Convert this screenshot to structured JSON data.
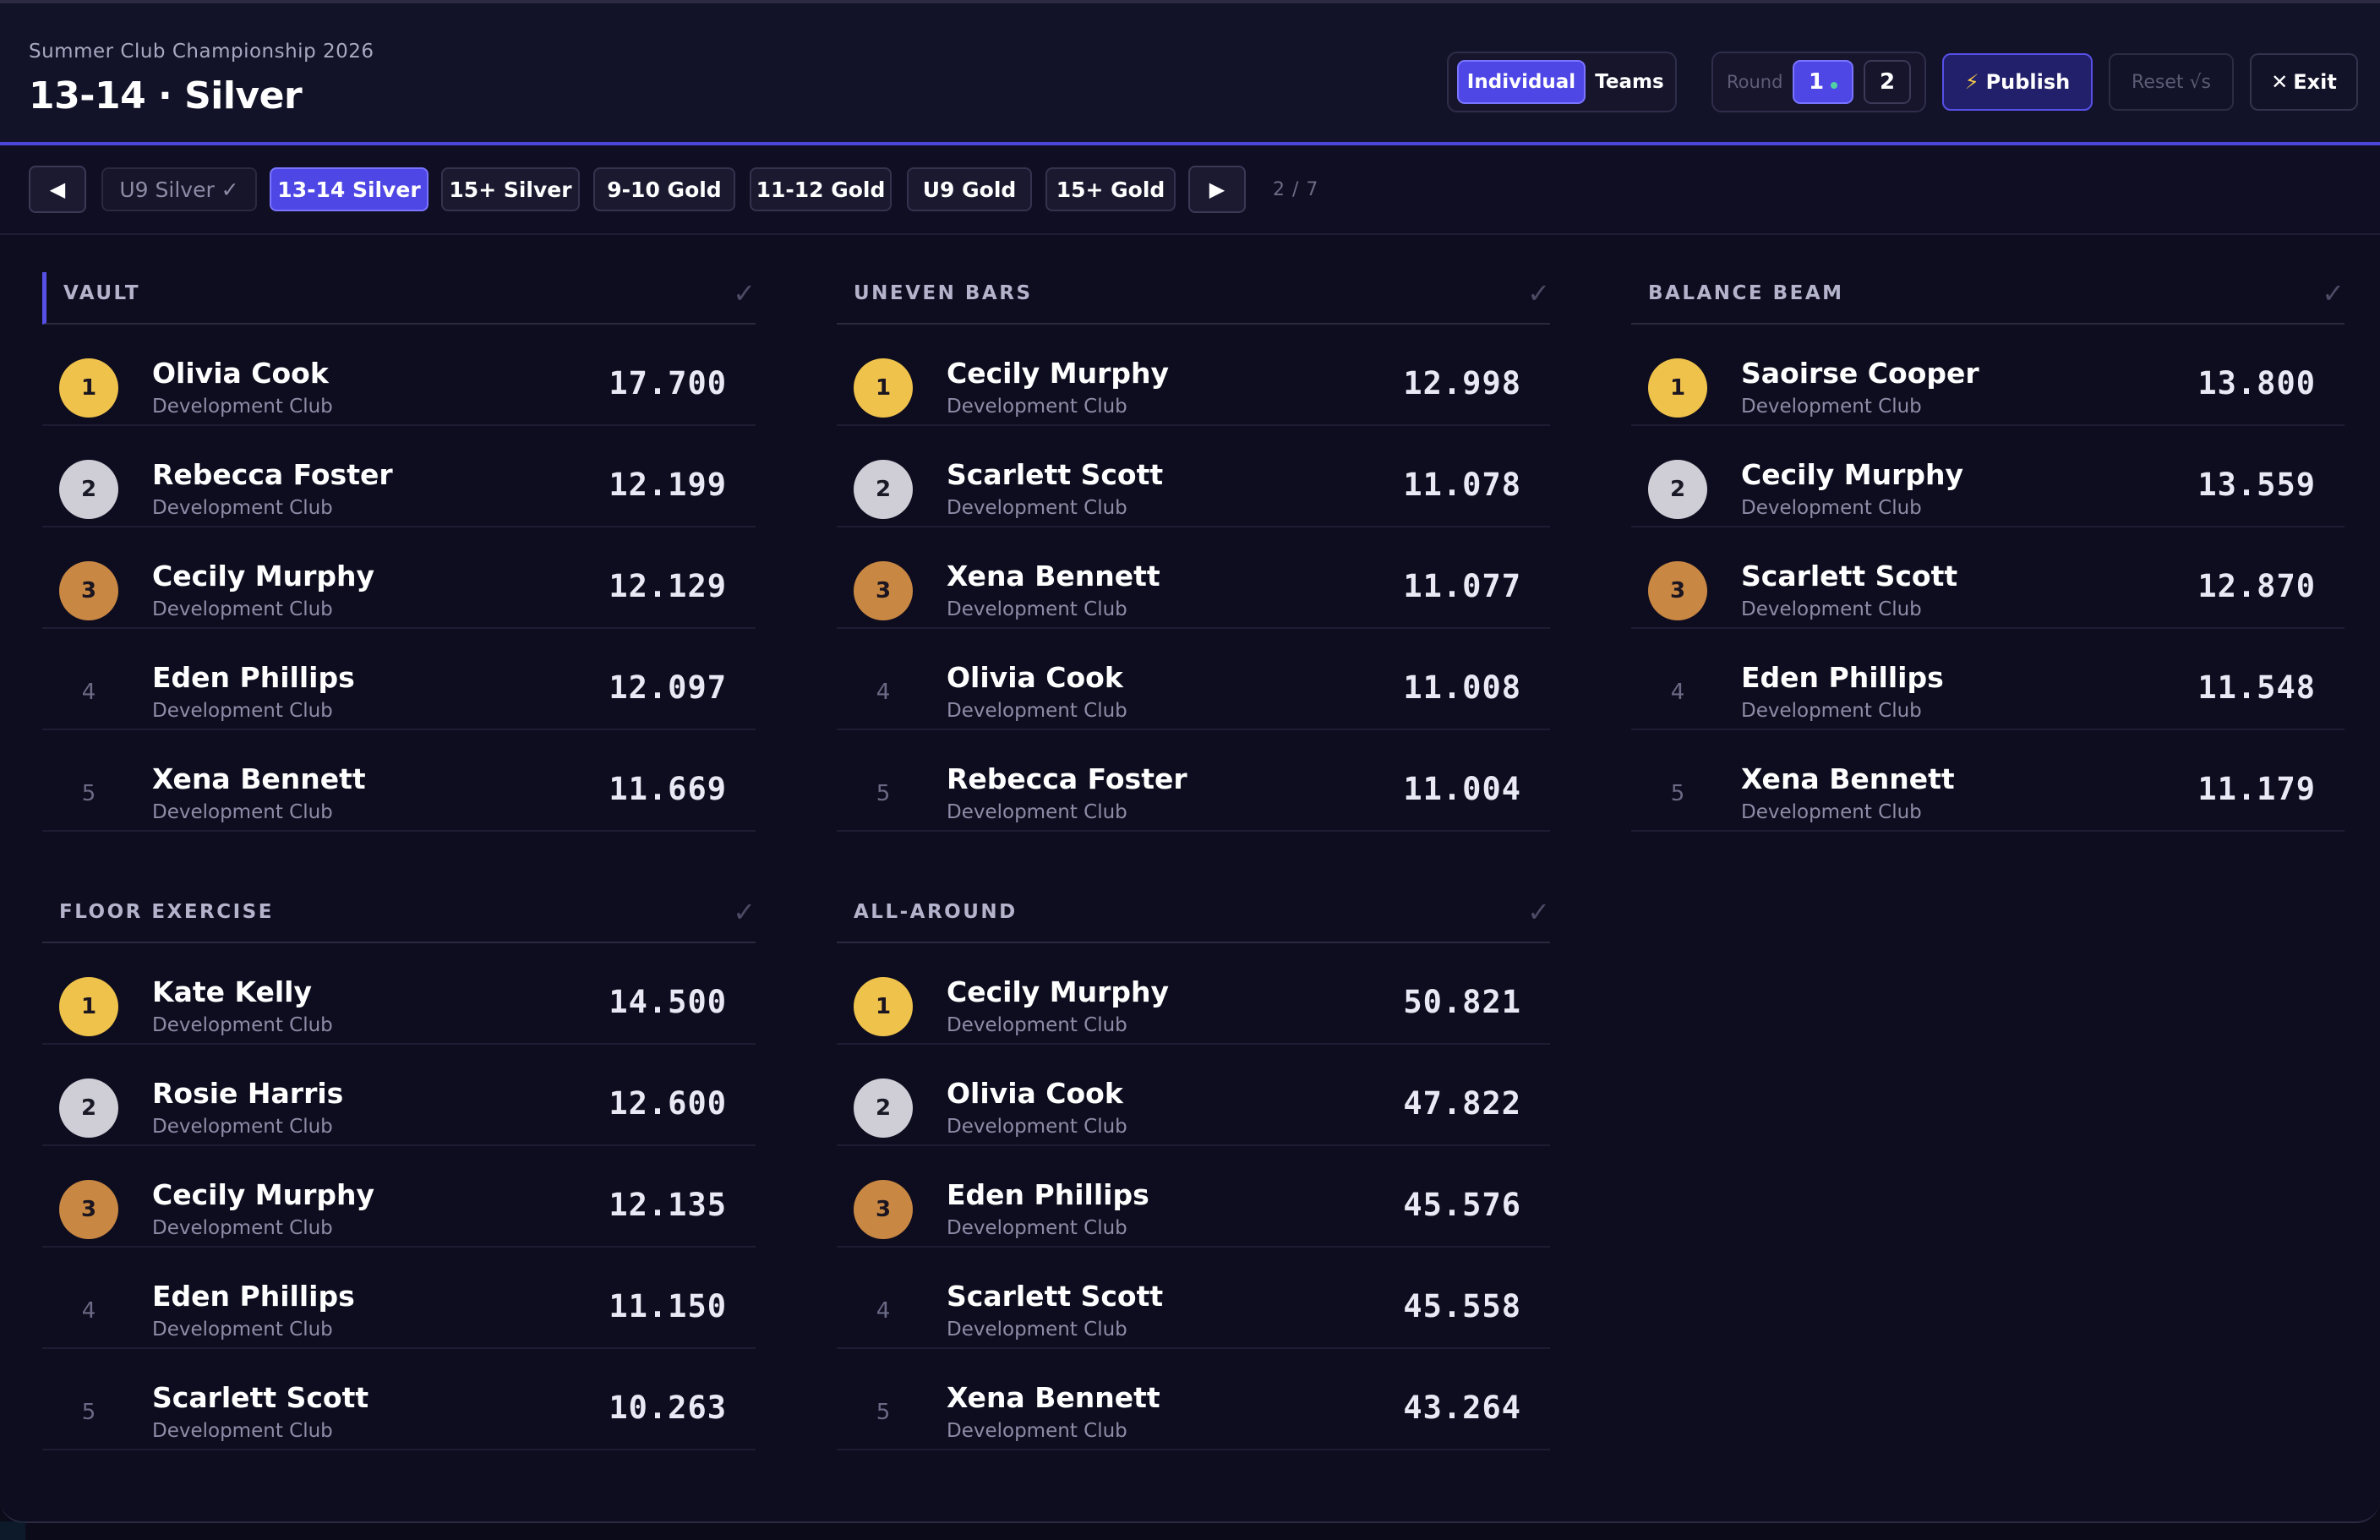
{
  "header": {
    "subtitle": "Summer Club Championship 2026",
    "title": "13-14 · Silver",
    "mode": {
      "individual": "Individual",
      "teams": "Teams",
      "active": "Individual"
    },
    "round": {
      "label": "Round",
      "r1": "1",
      "r2": "2",
      "active": "1"
    },
    "publish_label": "Publish",
    "reset_label": "Reset √s",
    "exit_label": "Exit"
  },
  "tabs": {
    "items": [
      {
        "label": "U9 Silver ✓",
        "state": "done"
      },
      {
        "label": "13-14 Silver",
        "state": "active"
      },
      {
        "label": "15+ Silver",
        "state": "normal"
      },
      {
        "label": "9-10 Gold",
        "state": "normal"
      },
      {
        "label": "11-12 Gold",
        "state": "normal"
      },
      {
        "label": "U9 Gold",
        "state": "normal"
      },
      {
        "label": "15+ Gold",
        "state": "normal"
      }
    ],
    "pager": "2 / 7"
  },
  "panels": [
    {
      "title": "VAULT",
      "rows": [
        {
          "rank": "1",
          "name": "Olivia Cook",
          "club": "Development Club",
          "score": "17.700"
        },
        {
          "rank": "2",
          "name": "Rebecca Foster",
          "club": "Development Club",
          "score": "12.199"
        },
        {
          "rank": "3",
          "name": "Cecily Murphy",
          "club": "Development Club",
          "score": "12.129"
        },
        {
          "rank": "4",
          "name": "Eden Phillips",
          "club": "Development Club",
          "score": "12.097"
        },
        {
          "rank": "5",
          "name": "Xena Bennett",
          "club": "Development Club",
          "score": "11.669"
        }
      ]
    },
    {
      "title": "UNEVEN BARS",
      "rows": [
        {
          "rank": "1",
          "name": "Cecily Murphy",
          "club": "Development Club",
          "score": "12.998"
        },
        {
          "rank": "2",
          "name": "Scarlett Scott",
          "club": "Development Club",
          "score": "11.078"
        },
        {
          "rank": "3",
          "name": "Xena Bennett",
          "club": "Development Club",
          "score": "11.077"
        },
        {
          "rank": "4",
          "name": "Olivia Cook",
          "club": "Development Club",
          "score": "11.008"
        },
        {
          "rank": "5",
          "name": "Rebecca Foster",
          "club": "Development Club",
          "score": "11.004"
        }
      ]
    },
    {
      "title": "BALANCE BEAM",
      "rows": [
        {
          "rank": "1",
          "name": "Saoirse Cooper",
          "club": "Development Club",
          "score": "13.800"
        },
        {
          "rank": "2",
          "name": "Cecily Murphy",
          "club": "Development Club",
          "score": "13.559"
        },
        {
          "rank": "3",
          "name": "Scarlett Scott",
          "club": "Development Club",
          "score": "12.870"
        },
        {
          "rank": "4",
          "name": "Eden Phillips",
          "club": "Development Club",
          "score": "11.548"
        },
        {
          "rank": "5",
          "name": "Xena Bennett",
          "club": "Development Club",
          "score": "11.179"
        }
      ]
    },
    {
      "title": "FLOOR EXERCISE",
      "rows": [
        {
          "rank": "1",
          "name": "Kate Kelly",
          "club": "Development Club",
          "score": "14.500"
        },
        {
          "rank": "2",
          "name": "Rosie Harris",
          "club": "Development Club",
          "score": "12.600"
        },
        {
          "rank": "3",
          "name": "Cecily Murphy",
          "club": "Development Club",
          "score": "12.135"
        },
        {
          "rank": "4",
          "name": "Eden Phillips",
          "club": "Development Club",
          "score": "11.150"
        },
        {
          "rank": "5",
          "name": "Scarlett Scott",
          "club": "Development Club",
          "score": "10.263"
        }
      ]
    },
    {
      "title": "ALL-AROUND",
      "rows": [
        {
          "rank": "1",
          "name": "Cecily Murphy",
          "club": "Development Club",
          "score": "50.821"
        },
        {
          "rank": "2",
          "name": "Olivia Cook",
          "club": "Development Club",
          "score": "47.822"
        },
        {
          "rank": "3",
          "name": "Eden Phillips",
          "club": "Development Club",
          "score": "45.576"
        },
        {
          "rank": "4",
          "name": "Scarlett Scott",
          "club": "Development Club",
          "score": "45.558"
        },
        {
          "rank": "5",
          "name": "Xena Bennett",
          "club": "Development Club",
          "score": "43.264"
        }
      ]
    }
  ],
  "colors": {
    "accent": "#4e47e5",
    "gold": "#efc24b",
    "silver": "#cfcdd6",
    "bronze": "#c88742",
    "live_dot": "#4fd1a4"
  }
}
